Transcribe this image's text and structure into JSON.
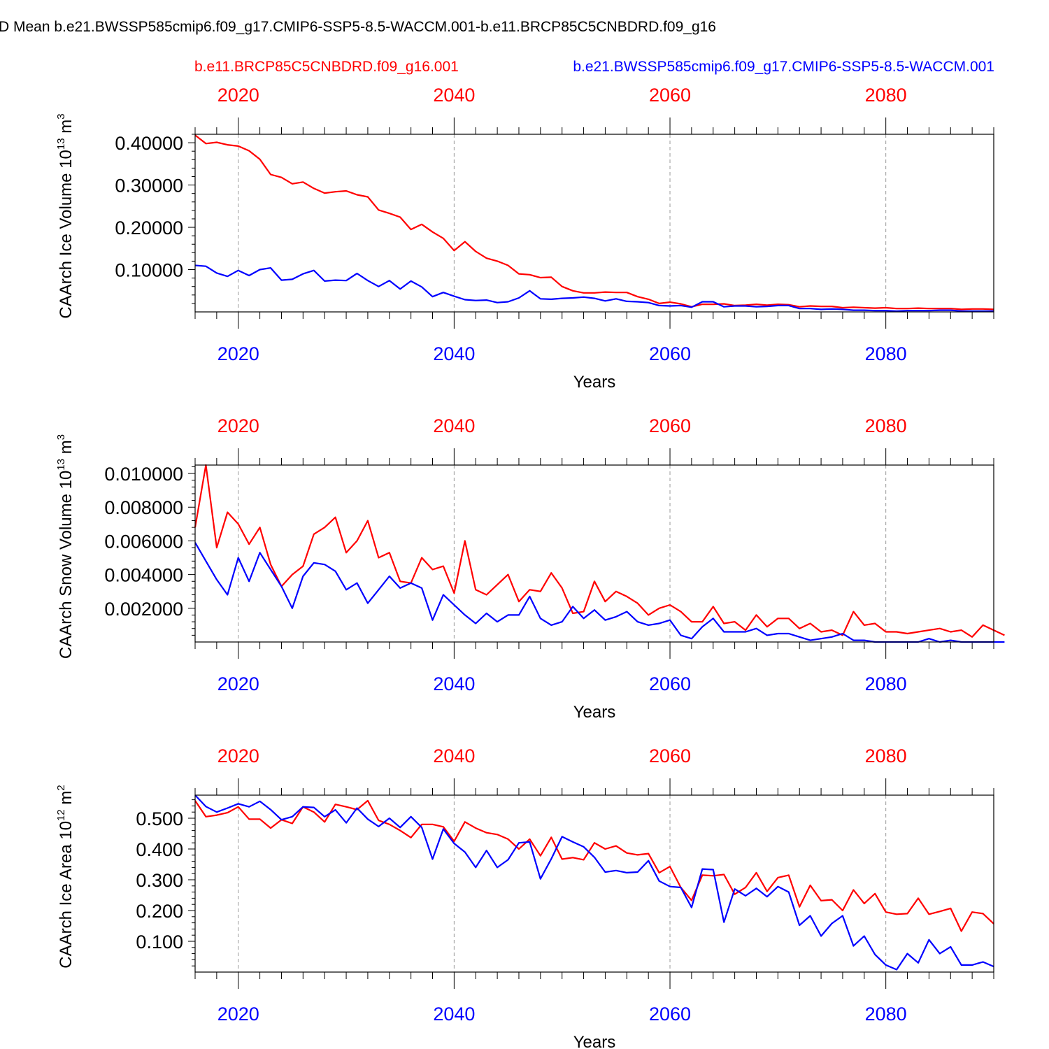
{
  "title": "D Mean b.e21.BWSSP585cmip6.f09_g17.CMIP6-SSP5-8.5-WACCM.001-b.e11.BRCP85C5CNBDRD.f09_g16",
  "legend": {
    "red": "b.e11.BRCP85C5CNBDRD.f09_g16.001",
    "blue": "b.e21.BWSSP585cmip6.f09_g17.CMIP6-SSP5-8.5-WACCM.001"
  },
  "colors": {
    "red": "#ff0000",
    "blue": "#0000ff"
  },
  "chart_data": [
    {
      "type": "line",
      "title": "",
      "xlabel": "Years",
      "ylabel": "CAArch Ice Volume 10",
      "ylabel_exp": "13",
      "ylabel_unit": " m",
      "ylabel_unit_exp": "3",
      "x_top_ticks": [
        "2020",
        "2040",
        "2060",
        "2080"
      ],
      "x_bottom_ticks": [
        "2020",
        "2040",
        "2060",
        "2080"
      ],
      "x_tick_values": [
        2020,
        2040,
        2060,
        2080
      ],
      "xlim": [
        2016,
        2090
      ],
      "ylim": [
        0.0,
        0.42
      ],
      "y_ticks": [
        0.1,
        0.2,
        0.3,
        0.4
      ],
      "y_tick_labels": [
        "0.10000",
        "0.20000",
        "0.30000",
        "0.40000"
      ],
      "x_start": 2016,
      "series": [
        {
          "name": "b.e11.BRCP85C5CNBDRD.f09_g16.001",
          "color": "red",
          "values": [
            0.418,
            0.398,
            0.401,
            0.395,
            0.392,
            0.381,
            0.361,
            0.325,
            0.318,
            0.303,
            0.307,
            0.292,
            0.281,
            0.284,
            0.286,
            0.277,
            0.272,
            0.241,
            0.233,
            0.224,
            0.195,
            0.207,
            0.189,
            0.174,
            0.145,
            0.166,
            0.143,
            0.127,
            0.12,
            0.11,
            0.09,
            0.088,
            0.081,
            0.082,
            0.06,
            0.05,
            0.045,
            0.045,
            0.047,
            0.046,
            0.046,
            0.036,
            0.03,
            0.02,
            0.023,
            0.019,
            0.012,
            0.018,
            0.018,
            0.019,
            0.015,
            0.016,
            0.018,
            0.016,
            0.018,
            0.017,
            0.012,
            0.014,
            0.013,
            0.013,
            0.01,
            0.011,
            0.01,
            0.009,
            0.01,
            0.008,
            0.008,
            0.009,
            0.008,
            0.008,
            0.008,
            0.006,
            0.007,
            0.007,
            0.006
          ]
        },
        {
          "name": "b.e21.BWSSP585cmip6.f09_g17.CMIP6-SSP5-8.5-WACCM.001",
          "color": "blue",
          "values": [
            0.11,
            0.108,
            0.092,
            0.084,
            0.098,
            0.086,
            0.1,
            0.104,
            0.075,
            0.077,
            0.09,
            0.098,
            0.073,
            0.075,
            0.074,
            0.091,
            0.074,
            0.06,
            0.074,
            0.054,
            0.073,
            0.059,
            0.036,
            0.046,
            0.037,
            0.029,
            0.027,
            0.028,
            0.022,
            0.024,
            0.033,
            0.05,
            0.031,
            0.03,
            0.032,
            0.033,
            0.035,
            0.032,
            0.026,
            0.031,
            0.025,
            0.024,
            0.022,
            0.015,
            0.014,
            0.015,
            0.011,
            0.024,
            0.024,
            0.012,
            0.014,
            0.014,
            0.012,
            0.013,
            0.015,
            0.015,
            0.008,
            0.008,
            0.006,
            0.007,
            0.006,
            0.004,
            0.004,
            0.003,
            0.003,
            0.002,
            0.003,
            0.003,
            0.003,
            0.004,
            0.004,
            0.002,
            0.002,
            0.002,
            0.002
          ]
        }
      ]
    },
    {
      "type": "line",
      "title": "",
      "xlabel": "Years",
      "ylabel": "CAArch Snow Volume 10",
      "ylabel_exp": "13",
      "ylabel_unit": " m",
      "ylabel_unit_exp": "3",
      "x_top_ticks": [
        "2020",
        "2040",
        "2060",
        "2080"
      ],
      "x_bottom_ticks": [
        "2020",
        "2040",
        "2060",
        "2080"
      ],
      "x_tick_values": [
        2020,
        2040,
        2060,
        2080
      ],
      "xlim": [
        2016,
        2090
      ],
      "ylim": [
        0.0,
        0.0105
      ],
      "y_ticks": [
        0.002,
        0.004,
        0.006,
        0.008,
        0.01
      ],
      "y_tick_labels": [
        "0.002000",
        "0.004000",
        "0.006000",
        "0.008000",
        "0.010000"
      ],
      "x_start": 2016,
      "series": [
        {
          "name": "b.e11.BRCP85C5CNBDRD.f09_g16.001",
          "color": "red",
          "values": [
            0.0068,
            0.0105,
            0.0056,
            0.0077,
            0.007,
            0.0058,
            0.0068,
            0.0046,
            0.0033,
            0.004,
            0.0045,
            0.0064,
            0.0068,
            0.0074,
            0.0053,
            0.006,
            0.0072,
            0.005,
            0.0053,
            0.0036,
            0.0035,
            0.005,
            0.0043,
            0.0045,
            0.0029,
            0.006,
            0.0031,
            0.0028,
            0.0034,
            0.004,
            0.0024,
            0.0031,
            0.003,
            0.0041,
            0.0032,
            0.0017,
            0.0018,
            0.0036,
            0.0024,
            0.003,
            0.0027,
            0.0023,
            0.0016,
            0.002,
            0.0022,
            0.0018,
            0.0012,
            0.0012,
            0.0021,
            0.0011,
            0.0012,
            0.0007,
            0.0016,
            0.0009,
            0.0014,
            0.0014,
            0.0008,
            0.0011,
            0.0006,
            0.0007,
            0.0004,
            0.0018,
            0.001,
            0.0011,
            0.0006,
            0.0006,
            0.0005,
            0.0006,
            0.0007,
            0.0008,
            0.0006,
            0.0007,
            0.0003,
            0.001,
            0.0007,
            0.0004
          ]
        },
        {
          "name": "b.e21.BWSSP585cmip6.f09_g17.CMIP6-SSP5-8.5-WACCM.001",
          "color": "blue",
          "values": [
            0.0059,
            0.0048,
            0.0037,
            0.0028,
            0.005,
            0.0036,
            0.0053,
            0.0043,
            0.0033,
            0.002,
            0.0039,
            0.0047,
            0.0046,
            0.0042,
            0.0031,
            0.0035,
            0.0023,
            0.0031,
            0.0039,
            0.0032,
            0.0035,
            0.0032,
            0.0013,
            0.0028,
            0.0022,
            0.0016,
            0.0011,
            0.0017,
            0.0012,
            0.0016,
            0.0016,
            0.0027,
            0.0014,
            0.001,
            0.0012,
            0.0021,
            0.0014,
            0.0019,
            0.0013,
            0.0015,
            0.0018,
            0.0012,
            0.001,
            0.0011,
            0.0013,
            0.0004,
            0.0002,
            0.0009,
            0.0014,
            0.0006,
            0.0006,
            0.0006,
            0.0008,
            0.0004,
            0.0005,
            0.0005,
            0.0003,
            0.0001,
            0.0002,
            0.0003,
            0.0005,
            0.0001,
            0.0001,
            0.0,
            0.0,
            0.0,
            0.0,
            0.0,
            0.0002,
            0.0,
            0.0001,
            0.0,
            0.0,
            0.0,
            0.0,
            0.0
          ]
        }
      ]
    },
    {
      "type": "line",
      "title": "",
      "xlabel": "Years",
      "ylabel": "CAArch Ice Area 10",
      "ylabel_exp": "12",
      "ylabel_unit": " m",
      "ylabel_unit_exp": "2",
      "x_top_ticks": [
        "2020",
        "2040",
        "2060",
        "2080"
      ],
      "x_bottom_ticks": [
        "2020",
        "2040",
        "2060",
        "2080"
      ],
      "x_tick_values": [
        2020,
        2040,
        2060,
        2080
      ],
      "xlim": [
        2016,
        2090
      ],
      "ylim": [
        0.0,
        0.575
      ],
      "y_ticks": [
        0.1,
        0.2,
        0.3,
        0.4,
        0.5
      ],
      "y_tick_labels": [
        "0.100",
        "0.200",
        "0.300",
        "0.400",
        "0.500"
      ],
      "x_start": 2016,
      "series": [
        {
          "name": "b.e11.BRCP85C5CNBDRD.f09_g16.001",
          "color": "red",
          "values": [
            0.557,
            0.505,
            0.51,
            0.518,
            0.537,
            0.497,
            0.497,
            0.468,
            0.495,
            0.483,
            0.537,
            0.52,
            0.488,
            0.545,
            0.537,
            0.528,
            0.557,
            0.493,
            0.48,
            0.46,
            0.437,
            0.48,
            0.48,
            0.472,
            0.425,
            0.488,
            0.468,
            0.453,
            0.447,
            0.432,
            0.4,
            0.432,
            0.378,
            0.438,
            0.367,
            0.372,
            0.365,
            0.42,
            0.4,
            0.41,
            0.387,
            0.381,
            0.385,
            0.323,
            0.343,
            0.275,
            0.233,
            0.315,
            0.313,
            0.317,
            0.253,
            0.275,
            0.323,
            0.262,
            0.307,
            0.315,
            0.212,
            0.282,
            0.232,
            0.235,
            0.2,
            0.267,
            0.223,
            0.255,
            0.195,
            0.188,
            0.19,
            0.24,
            0.188,
            0.197,
            0.207,
            0.133,
            0.195,
            0.19,
            0.157
          ]
        },
        {
          "name": "b.e21.BWSSP585cmip6.f09_g17.CMIP6-SSP5-8.5-WACCM.001",
          "color": "blue",
          "values": [
            0.575,
            0.538,
            0.52,
            0.533,
            0.547,
            0.537,
            0.555,
            0.528,
            0.495,
            0.505,
            0.537,
            0.535,
            0.505,
            0.527,
            0.485,
            0.533,
            0.497,
            0.473,
            0.5,
            0.47,
            0.505,
            0.47,
            0.367,
            0.465,
            0.418,
            0.39,
            0.34,
            0.395,
            0.34,
            0.365,
            0.42,
            0.423,
            0.303,
            0.368,
            0.44,
            0.423,
            0.407,
            0.373,
            0.325,
            0.33,
            0.323,
            0.325,
            0.362,
            0.296,
            0.278,
            0.275,
            0.21,
            0.335,
            0.333,
            0.162,
            0.27,
            0.248,
            0.272,
            0.245,
            0.278,
            0.26,
            0.152,
            0.183,
            0.117,
            0.158,
            0.183,
            0.085,
            0.117,
            0.057,
            0.023,
            0.008,
            0.06,
            0.03,
            0.105,
            0.06,
            0.082,
            0.023,
            0.023,
            0.033,
            0.018
          ]
        }
      ]
    }
  ]
}
